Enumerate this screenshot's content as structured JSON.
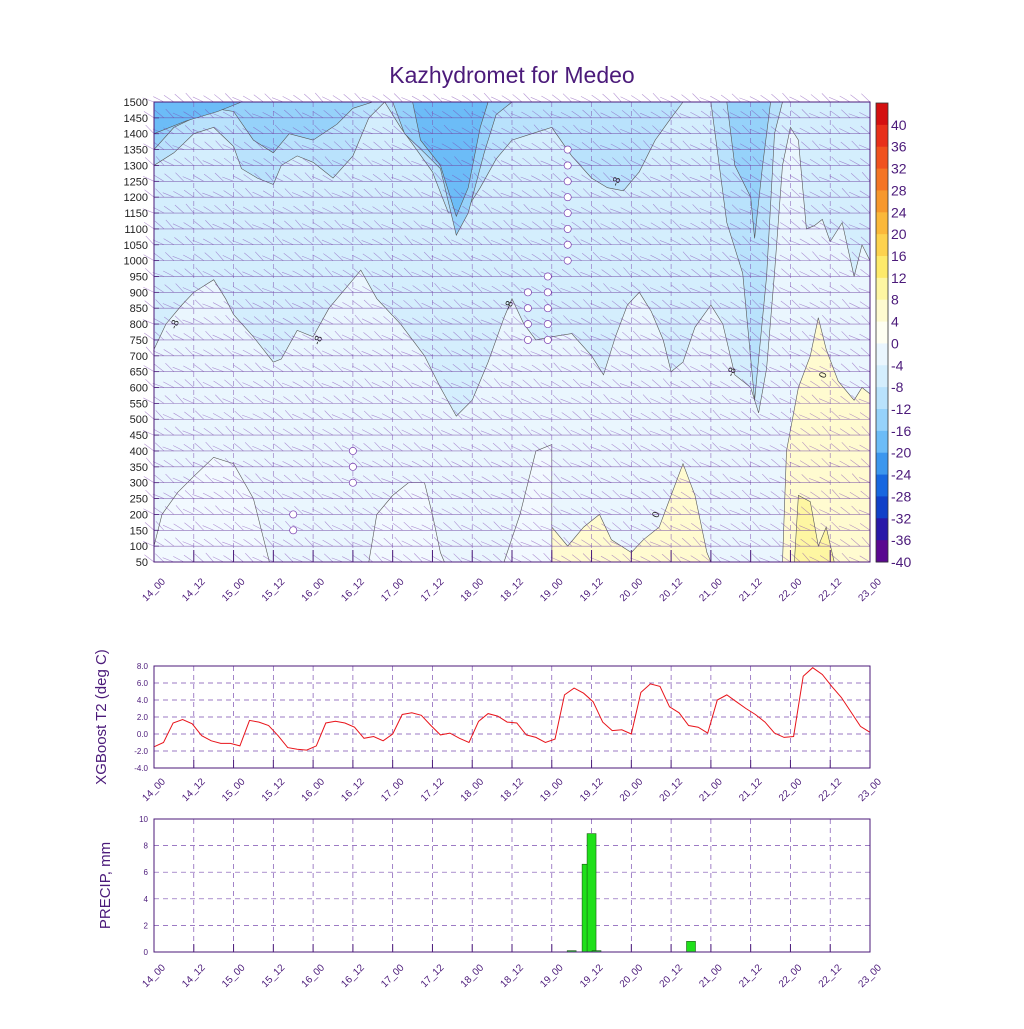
{
  "title": "Kazhydromet for Medeo",
  "colors": {
    "axis": "#4b1a7a",
    "grid": "#7b4fb0",
    "line": "#e8141b",
    "bar": "#1fe01a",
    "contour_line": "#555555"
  },
  "chart_data": [
    {
      "type": "heatmap",
      "title": "Kazhydromet for Medeo",
      "x_ticks": [
        "14_00",
        "14_12",
        "15_00",
        "15_12",
        "16_00",
        "16_12",
        "17_00",
        "17_12",
        "18_00",
        "18_12",
        "19_00",
        "19_12",
        "20_00",
        "20_12",
        "21_00",
        "21_12",
        "22_00",
        "22_12",
        "23_00"
      ],
      "y_ticks": [
        1500,
        1450,
        1400,
        1350,
        1300,
        1250,
        1200,
        1150,
        1100,
        1050,
        1000,
        950,
        900,
        850,
        800,
        750,
        700,
        650,
        600,
        550,
        500,
        450,
        400,
        350,
        300,
        250,
        200,
        150,
        100,
        50
      ],
      "ylim": [
        50,
        1500
      ],
      "contour_labels": [
        "-8",
        "-8",
        "-8",
        "-8",
        "-8",
        "0",
        "0"
      ],
      "colorbar_labels": [
        "40",
        "36",
        "32",
        "28",
        "24",
        "20",
        "16",
        "12",
        "8",
        "4",
        "0",
        "-4",
        "-8",
        "-12",
        "-16",
        "-20",
        "-24",
        "-28",
        "-32",
        "-36",
        "-40"
      ],
      "colorbar_colors": [
        "#d41010",
        "#e8301a",
        "#f0521e",
        "#f47524",
        "#f7982c",
        "#fbb83a",
        "#fdd24e",
        "#feea6a",
        "#fef6a2",
        "#fffbd0",
        "#fffff2",
        "#eaf6fe",
        "#d4eefd",
        "#b9e2fc",
        "#96d2fa",
        "#6cbcf7",
        "#3c97ee",
        "#1767e0",
        "#1040c8",
        "#2818a8",
        "#5a0890"
      ],
      "regions": {
        "cold_top": {
          "value": -20,
          "x": [
            0,
            1,
            2,
            2.5,
            3,
            3.5,
            4,
            4.5,
            5,
            5.5,
            6,
            6.5,
            7,
            7.5,
            8,
            8.5,
            9,
            9.5,
            10,
            10.5,
            11,
            11.5,
            12,
            12.5,
            13,
            13.5,
            14,
            14.5,
            15,
            15.5,
            16,
            16.5,
            17,
            17.5,
            18,
            18.5
          ],
          "top": [
            1500,
            1500,
            1500,
            1500,
            1500,
            1500,
            1500,
            1500,
            1500,
            1500,
            1500,
            1500,
            1500,
            1500,
            1500,
            1500,
            1500,
            1500,
            1500,
            1500,
            1500,
            1500,
            1500,
            1500,
            1500,
            1500,
            1500,
            1500,
            1500,
            1500,
            1500,
            1500,
            1500,
            1500,
            1500,
            1500
          ],
          "bottom": [
            1300,
            1350,
            1400,
            1380,
            1340,
            1330,
            1300,
            1370,
            1420,
            1460,
            1500,
            1500,
            1360,
            1250,
            1250,
            1100,
            1350,
            1420,
            1450,
            1500,
            1500,
            1500,
            1500,
            1500,
            1500,
            1500,
            1500,
            1500,
            1500,
            1500,
            1500,
            1500,
            1500,
            1500,
            1500,
            1500
          ]
        }
      }
    },
    {
      "type": "line",
      "ylabel": "XGBoost T2 (deg C)",
      "x_ticks": [
        "14_00",
        "14_12",
        "15_00",
        "15_12",
        "16_00",
        "16_12",
        "17_00",
        "17_12",
        "18_00",
        "18_12",
        "19_00",
        "19_12",
        "20_00",
        "20_12",
        "21_00",
        "21_12",
        "22_00",
        "22_12",
        "23_00"
      ],
      "y_ticks": [
        "8.0",
        "6.0",
        "4.0",
        "2.0",
        "0.0",
        "-2.0",
        "-4.0"
      ],
      "ylim": [
        -4,
        8
      ],
      "values": [
        -1.5,
        -1.0,
        1.3,
        1.7,
        1.2,
        -0.2,
        -0.8,
        -1.1,
        -1.1,
        -1.4,
        1.6,
        1.4,
        1.0,
        -0.2,
        -1.6,
        -1.8,
        -1.9,
        -1.4,
        1.3,
        1.5,
        1.3,
        0.8,
        -0.5,
        -0.3,
        -0.8,
        0.0,
        2.3,
        2.5,
        2.2,
        1.0,
        -0.1,
        0.1,
        -0.5,
        -1.0,
        1.5,
        2.4,
        2.1,
        1.4,
        1.3,
        -0.1,
        -0.4,
        -1.0,
        -0.6,
        4.6,
        5.4,
        4.8,
        3.8,
        1.4,
        0.4,
        0.5,
        0.0,
        4.9,
        5.9,
        5.6,
        3.2,
        2.5,
        1.0,
        0.8,
        0.1,
        4.0,
        4.6,
        3.8,
        3.0,
        2.3,
        1.4,
        0.1,
        -0.4,
        -0.3,
        6.8,
        7.8,
        7.0,
        5.6,
        4.3,
        2.6,
        0.9,
        0.2
      ],
      "grid": true
    },
    {
      "type": "bar",
      "ylabel": "PRECIP, mm",
      "x_ticks": [
        "14_00",
        "14_12",
        "15_00",
        "15_12",
        "16_00",
        "16_12",
        "17_00",
        "17_12",
        "18_00",
        "18_12",
        "19_00",
        "19_12",
        "20_00",
        "20_12",
        "21_00",
        "21_12",
        "22_00",
        "22_12",
        "23_00"
      ],
      "y_ticks": [
        "10",
        "8",
        "6",
        "4",
        "2",
        "0"
      ],
      "ylim": [
        0,
        10
      ],
      "bars": [
        {
          "x": 21.0,
          "value": 0.1
        },
        {
          "x": 21.75,
          "value": 6.6
        },
        {
          "x": 22.0,
          "value": 8.9
        },
        {
          "x": 22.25,
          "value": 0.1
        },
        {
          "x": 27.0,
          "value": 0.8
        }
      ],
      "grid": true
    }
  ]
}
